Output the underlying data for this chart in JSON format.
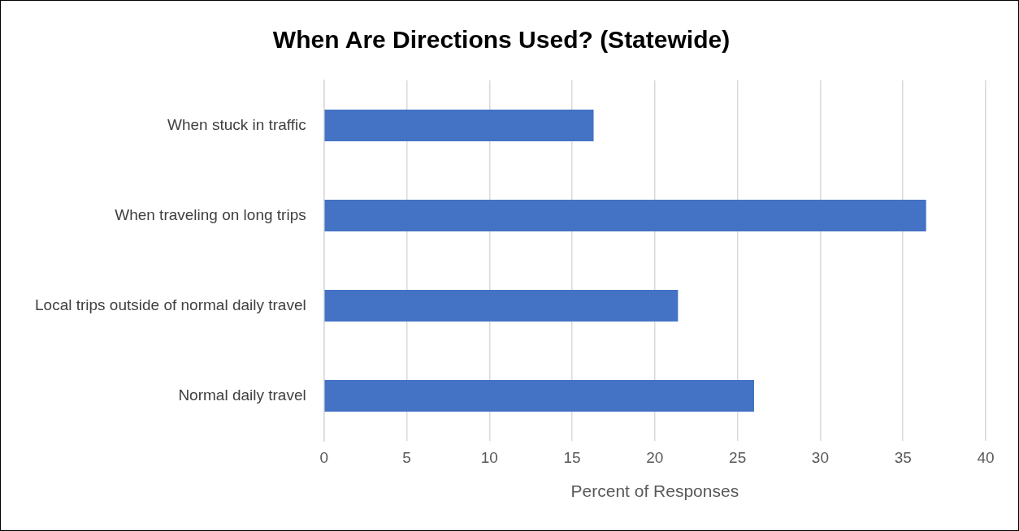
{
  "chart_data": {
    "type": "bar",
    "orientation": "horizontal",
    "title": "When Are Directions Used? (Statewide)",
    "xlabel": "Percent of Responses",
    "categories": [
      "When stuck in traffic",
      "When traveling on long trips",
      "Local trips outside of normal daily travel",
      "Normal daily travel"
    ],
    "values": [
      16.3,
      36.4,
      21.4,
      26.0
    ],
    "color": "#4472c4",
    "xlim": [
      0,
      40
    ],
    "xticks": [
      0,
      5,
      10,
      15,
      20,
      25,
      30,
      35,
      40
    ],
    "grid": "x"
  }
}
